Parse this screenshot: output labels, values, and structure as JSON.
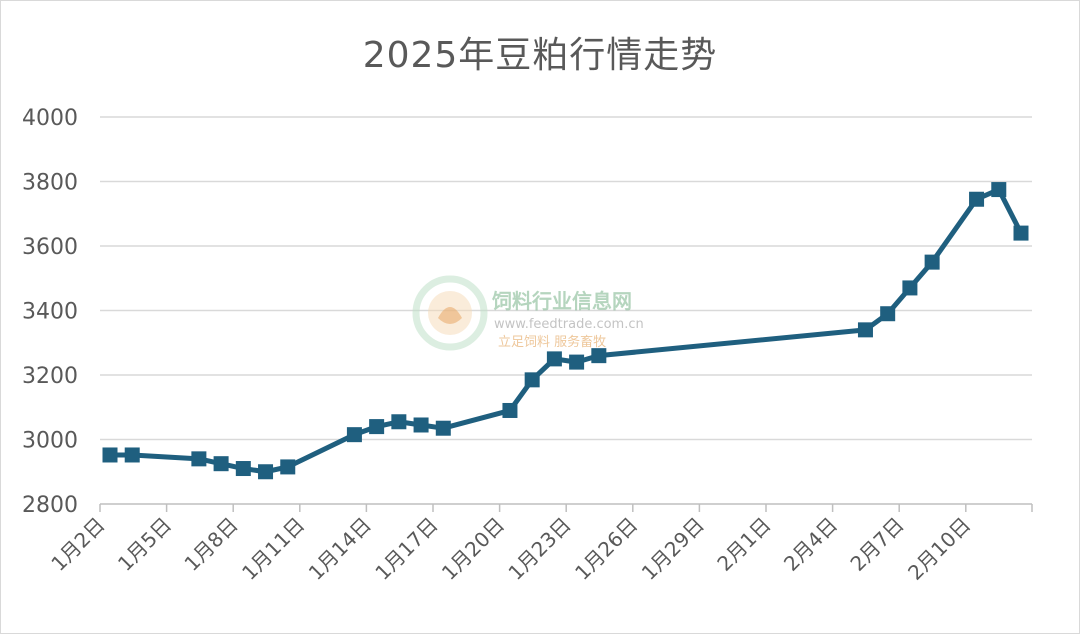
{
  "chart_data": {
    "type": "line",
    "title": "2025年豆粕行情走势",
    "xlabel": "",
    "ylabel": "",
    "ylim": [
      2800,
      4000
    ],
    "yticks": [
      2800,
      3000,
      3200,
      3400,
      3600,
      3800,
      4000
    ],
    "xlim": [
      "2025-01-02",
      "2025-02-12"
    ],
    "xtick_labels": [
      "1月2日",
      "1月5日",
      "1月8日",
      "1月11日",
      "1月14日",
      "1月17日",
      "1月20日",
      "1月23日",
      "1月26日",
      "1月29日",
      "2月1日",
      "2月4日",
      "2月7日",
      "2月10日"
    ],
    "grid": true,
    "legend": "none",
    "line_color": "#1f5f7f",
    "grid_color": "#d9d9d9",
    "series": [
      {
        "name": "",
        "points": [
          {
            "x": "2025-01-02",
            "y": 2952
          },
          {
            "x": "2025-01-03",
            "y": 2952
          },
          {
            "x": "2025-01-06",
            "y": 2940
          },
          {
            "x": "2025-01-07",
            "y": 2925
          },
          {
            "x": "2025-01-08",
            "y": 2910
          },
          {
            "x": "2025-01-09",
            "y": 2900
          },
          {
            "x": "2025-01-10",
            "y": 2915
          },
          {
            "x": "2025-01-13",
            "y": 3015
          },
          {
            "x": "2025-01-14",
            "y": 3040
          },
          {
            "x": "2025-01-15",
            "y": 3055
          },
          {
            "x": "2025-01-16",
            "y": 3045
          },
          {
            "x": "2025-01-17",
            "y": 3035
          },
          {
            "x": "2025-01-20",
            "y": 3090
          },
          {
            "x": "2025-01-21",
            "y": 3185
          },
          {
            "x": "2025-01-22",
            "y": 3250
          },
          {
            "x": "2025-01-23",
            "y": 3240
          },
          {
            "x": "2025-01-24",
            "y": 3260
          },
          {
            "x": "2025-02-05",
            "y": 3340
          },
          {
            "x": "2025-02-06",
            "y": 3390
          },
          {
            "x": "2025-02-07",
            "y": 3470
          },
          {
            "x": "2025-02-08",
            "y": 3550
          },
          {
            "x": "2025-02-10",
            "y": 3745
          },
          {
            "x": "2025-02-11",
            "y": 3775
          },
          {
            "x": "2025-02-12",
            "y": 3640
          }
        ]
      }
    ]
  },
  "watermark": {
    "name": "饲料行业信息网",
    "url": "www.feedtrade.com.cn",
    "slogan": "立足饲料 服务畜牧"
  }
}
